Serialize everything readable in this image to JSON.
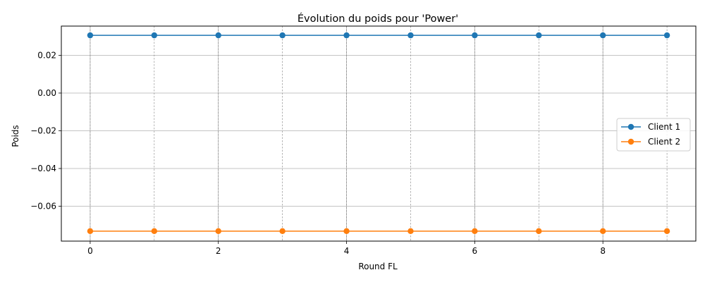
{
  "chart_data": {
    "type": "line",
    "title": "Évolution du poids pour 'Power'",
    "xlabel": "Round FL",
    "ylabel": "Poids",
    "x": [
      0,
      1,
      2,
      3,
      4,
      5,
      6,
      7,
      8,
      9
    ],
    "xlim": [
      -0.45,
      9.45
    ],
    "ylim": [
      -0.0785,
      0.0355
    ],
    "xticks": [
      0,
      2,
      4,
      6,
      8
    ],
    "xtick_labels": [
      "0",
      "2",
      "4",
      "6",
      "8"
    ],
    "yticks": [
      0.02,
      0.0,
      -0.02,
      -0.04,
      -0.06
    ],
    "ytick_labels": [
      "0.02",
      "0.00",
      "−0.02",
      "−0.04",
      "−0.06"
    ],
    "vertical_dashed_grid_at_each_round": true,
    "grid": true,
    "legend_position": "center-right",
    "series": [
      {
        "name": "Client 1",
        "color": "#1f77b4",
        "marker": "circle",
        "values": [
          0.0306,
          0.0306,
          0.0306,
          0.0306,
          0.0306,
          0.0306,
          0.0306,
          0.0306,
          0.0306,
          0.0306
        ]
      },
      {
        "name": "Client 2",
        "color": "#ff7f0e",
        "marker": "circle",
        "values": [
          -0.0732,
          -0.0732,
          -0.0732,
          -0.0732,
          -0.0732,
          -0.0732,
          -0.0732,
          -0.0732,
          -0.0732,
          -0.0732
        ]
      }
    ]
  }
}
